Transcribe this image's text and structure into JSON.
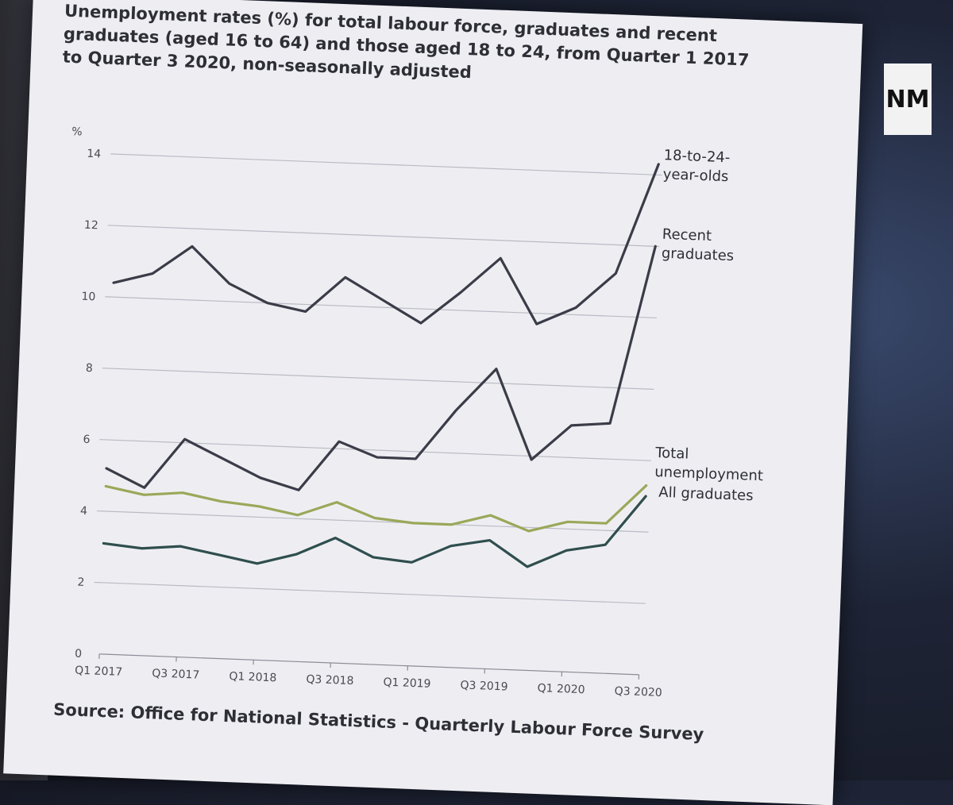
{
  "slide": {
    "source": "Source: Office for National Statistics - Quarterly Labour Force Survey",
    "logo_text": "NM"
  },
  "chart_data": {
    "type": "line",
    "title": "Unemployment rates (%) for total labour force, graduates and recent graduates (aged 16 to 64) and those aged 18 to 24, from Quarter 1 2017 to Quarter 3 2020, non-seasonally adjusted",
    "ylabel": "%",
    "xlabel": "",
    "ylim": [
      0,
      14
    ],
    "yticks": [
      0,
      2,
      4,
      6,
      8,
      10,
      12,
      14
    ],
    "grid": "horizontal",
    "x": [
      "Q1 2017",
      "Q2 2017",
      "Q3 2017",
      "Q4 2017",
      "Q1 2018",
      "Q2 2018",
      "Q3 2018",
      "Q4 2018",
      "Q1 2019",
      "Q2 2019",
      "Q3 2019",
      "Q4 2019",
      "Q1 2020",
      "Q2 2020",
      "Q3 2020"
    ],
    "xtick_labels": [
      "Q1 2017",
      "Q3 2017",
      "Q1 2018",
      "Q3 2018",
      "Q1 2019",
      "Q3 2019",
      "Q1 2020",
      "Q3 2020"
    ],
    "series": [
      {
        "name": "18-to-24-year-olds",
        "color": "#3a3c48",
        "values": [
          10.4,
          10.7,
          11.5,
          10.5,
          10.0,
          9.8,
          10.8,
          10.2,
          9.6,
          10.5,
          11.5,
          9.7,
          10.2,
          11.2,
          14.3
        ]
      },
      {
        "name": "Recent graduates",
        "color": "#3a3c48",
        "values": [
          5.2,
          4.7,
          6.1,
          5.6,
          5.1,
          4.8,
          6.2,
          5.8,
          5.8,
          7.2,
          8.4,
          5.9,
          6.9,
          7.0,
          12.0
        ]
      },
      {
        "name": "Total unemployment",
        "color": "#9aa85a",
        "values": [
          4.7,
          4.5,
          4.6,
          4.4,
          4.3,
          4.1,
          4.5,
          4.1,
          4.0,
          4.0,
          4.3,
          3.9,
          4.2,
          4.2,
          5.3
        ]
      },
      {
        "name": "All graduates",
        "color": "#2f4e4e",
        "values": [
          3.1,
          3.0,
          3.1,
          2.9,
          2.7,
          3.0,
          3.5,
          3.0,
          2.9,
          3.4,
          3.6,
          2.9,
          3.4,
          3.6,
          5.0
        ]
      }
    ],
    "series_labels": [
      {
        "lines": [
          "18-to-24-",
          "year-olds"
        ]
      },
      {
        "lines": [
          "Recent",
          "graduates"
        ]
      },
      {
        "lines": [
          "Total",
          "unemployment"
        ]
      },
      {
        "lines": [
          "All graduates"
        ]
      }
    ]
  }
}
